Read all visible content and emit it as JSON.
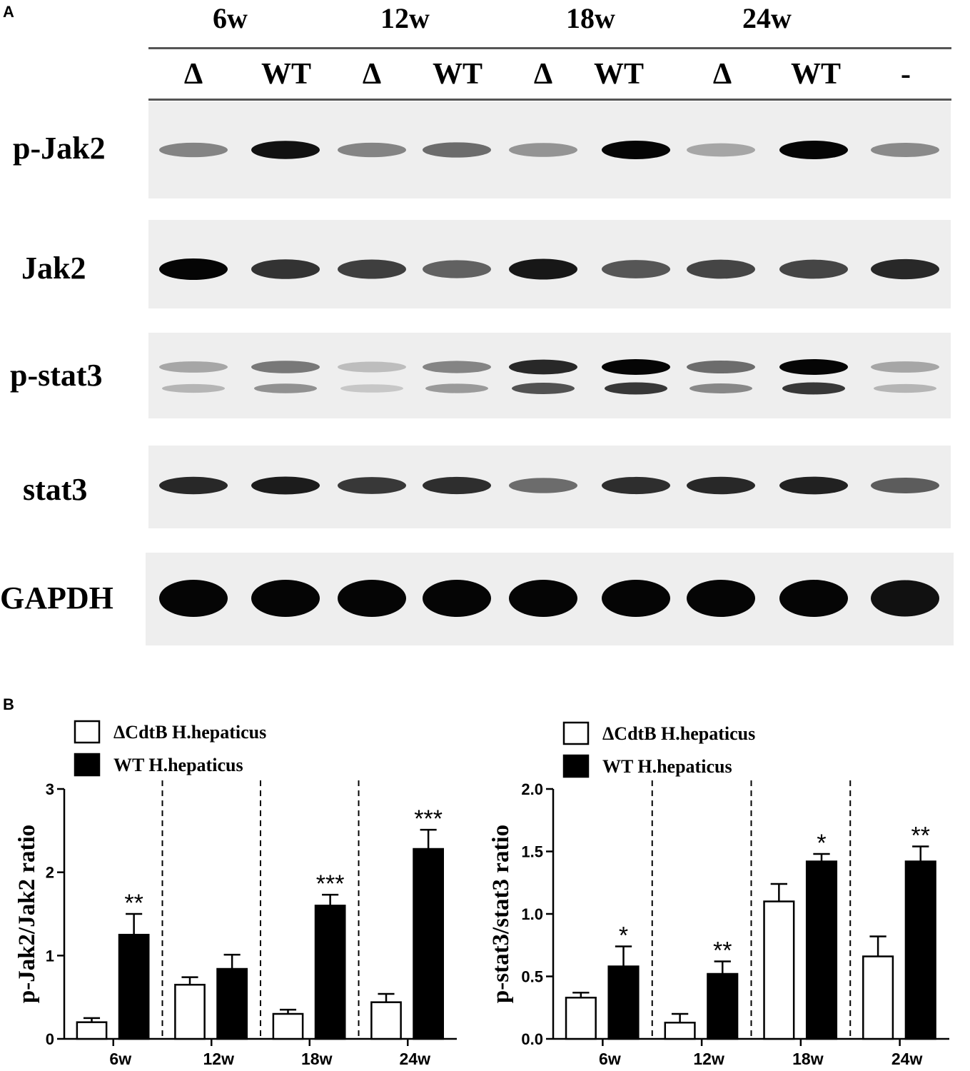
{
  "panel_a": {
    "letter": "A",
    "timepoints": [
      "6w",
      "12w",
      "18w",
      "24w"
    ],
    "lanes": [
      "Δ",
      "WT",
      "Δ",
      "WT",
      "Δ",
      "WT",
      "Δ",
      "WT",
      "-"
    ],
    "blots": [
      {
        "label": "p-Jak2",
        "intensity": [
          0.45,
          0.95,
          0.45,
          0.55,
          0.38,
          1.0,
          0.3,
          1.0,
          0.42
        ],
        "double": false
      },
      {
        "label": "Jak2",
        "intensity": [
          1.0,
          0.8,
          0.75,
          0.6,
          0.92,
          0.65,
          0.72,
          0.72,
          0.85
        ],
        "double": false
      },
      {
        "label": "p-stat3",
        "intensity": [
          0.3,
          0.5,
          0.2,
          0.45,
          0.85,
          1.0,
          0.55,
          1.0,
          0.3
        ],
        "double": true
      },
      {
        "label": "stat3",
        "intensity": [
          0.85,
          0.9,
          0.78,
          0.82,
          0.55,
          0.82,
          0.85,
          0.88,
          0.62
        ],
        "double": false
      },
      {
        "label": "GAPDH",
        "intensity": [
          1.0,
          1.0,
          1.0,
          1.0,
          1.0,
          1.0,
          1.0,
          1.0,
          0.95
        ],
        "double": false
      }
    ]
  },
  "panel_b": {
    "letter": "B"
  },
  "chart_data": [
    {
      "type": "bar",
      "categories": [
        "6w",
        "12w",
        "18w",
        "24w"
      ],
      "ylabel": "p-Jak2/Jak2 ratio",
      "ylim": [
        0,
        3
      ],
      "yticks": [
        "0",
        "1",
        "2",
        "3"
      ],
      "legend_position": "top-left",
      "series": [
        {
          "name": "ΔCdtB H.hepaticus",
          "fill": "#ffffff",
          "values": [
            0.2,
            0.65,
            0.3,
            0.44
          ],
          "errors": [
            0.05,
            0.09,
            0.05,
            0.1
          ],
          "significance": [
            "",
            "",
            "",
            ""
          ]
        },
        {
          "name": "WT H.hepaticus",
          "fill": "#000000",
          "values": [
            1.25,
            0.84,
            1.6,
            2.28
          ],
          "errors": [
            0.25,
            0.17,
            0.13,
            0.23
          ],
          "significance": [
            "**",
            "",
            "***",
            "***"
          ]
        }
      ]
    },
    {
      "type": "bar",
      "categories": [
        "6w",
        "12w",
        "18w",
        "24w"
      ],
      "ylabel": "p-stat3/stat3 ratio",
      "ylim": [
        0,
        2
      ],
      "yticks": [
        "0.0",
        "0.5",
        "1.0",
        "1.5",
        "2.0"
      ],
      "legend_position": "top-left",
      "series": [
        {
          "name": "ΔCdtB H.hepaticus",
          "fill": "#ffffff",
          "values": [
            0.33,
            0.13,
            1.1,
            0.66
          ],
          "errors": [
            0.04,
            0.07,
            0.14,
            0.16
          ],
          "significance": [
            "",
            "",
            "",
            ""
          ]
        },
        {
          "name": "WT H.hepaticus",
          "fill": "#000000",
          "values": [
            0.58,
            0.52,
            1.42,
            1.42
          ],
          "errors": [
            0.16,
            0.1,
            0.06,
            0.12
          ],
          "significance": [
            "*",
            "**",
            "*",
            "**"
          ]
        }
      ]
    }
  ]
}
